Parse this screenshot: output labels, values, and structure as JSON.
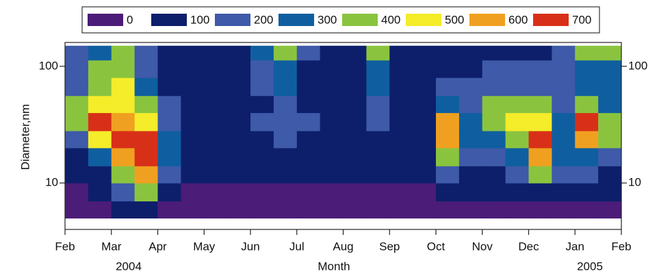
{
  "chart_data": {
    "type": "heatmap",
    "xlabel": "Month",
    "ylabel": "Diameter,nm",
    "years": [
      "2004",
      "2005"
    ],
    "xticks": [
      "Feb",
      "Mar",
      "Apr",
      "May",
      "Jun",
      "Jul",
      "Aug",
      "Sep",
      "Oct",
      "Nov",
      "Dec",
      "Jan",
      "Feb"
    ],
    "ylim": [
      4,
      160
    ],
    "yticks": [
      10,
      100
    ],
    "log_y": true,
    "y_edges": [
      5,
      7,
      10,
      14,
      20,
      28,
      40,
      56,
      80,
      113,
      150
    ],
    "colorscale": [
      {
        "value": 0,
        "color": "#4b1c78"
      },
      {
        "value": 100,
        "color": "#0d1f6b"
      },
      {
        "value": 200,
        "color": "#3e5aa8"
      },
      {
        "value": 300,
        "color": "#0f5fa0"
      },
      {
        "value": 400,
        "color": "#8ac43f"
      },
      {
        "value": 500,
        "color": "#f5ec2a"
      },
      {
        "value": 600,
        "color": "#f0a020"
      },
      {
        "value": 700,
        "color": "#d83018"
      }
    ],
    "z": [
      [
        50,
        80,
        120,
        150,
        250,
        450,
        400,
        250,
        200,
        230
      ],
      [
        80,
        120,
        150,
        300,
        550,
        700,
        500,
        400,
        400,
        300
      ],
      [
        100,
        200,
        450,
        600,
        700,
        650,
        550,
        500,
        450,
        400
      ],
      [
        150,
        400,
        650,
        700,
        700,
        550,
        400,
        350,
        250,
        200
      ],
      [
        80,
        150,
        200,
        350,
        300,
        250,
        200,
        150,
        150,
        120
      ],
      [
        30,
        80,
        110,
        120,
        130,
        130,
        120,
        110,
        100,
        100
      ],
      [
        20,
        60,
        100,
        110,
        120,
        120,
        110,
        110,
        100,
        100
      ],
      [
        20,
        60,
        100,
        110,
        120,
        120,
        110,
        110,
        100,
        100
      ],
      [
        20,
        60,
        110,
        120,
        150,
        200,
        150,
        200,
        250,
        300
      ],
      [
        20,
        70,
        120,
        150,
        200,
        250,
        250,
        300,
        350,
        400
      ],
      [
        20,
        60,
        110,
        130,
        150,
        200,
        150,
        150,
        150,
        200
      ],
      [
        20,
        50,
        100,
        110,
        120,
        130,
        120,
        110,
        110,
        120
      ],
      [
        20,
        50,
        100,
        110,
        120,
        130,
        130,
        120,
        110,
        110
      ],
      [
        20,
        60,
        110,
        120,
        150,
        200,
        250,
        300,
        350,
        450
      ],
      [
        20,
        60,
        110,
        120,
        130,
        140,
        130,
        120,
        110,
        110
      ],
      [
        30,
        80,
        120,
        150,
        180,
        180,
        160,
        130,
        120,
        110
      ],
      [
        50,
        100,
        200,
        400,
        650,
        600,
        350,
        200,
        180,
        150
      ],
      [
        40,
        100,
        150,
        250,
        350,
        300,
        250,
        220,
        180,
        150
      ],
      [
        40,
        100,
        150,
        250,
        350,
        450,
        400,
        250,
        200,
        150
      ],
      [
        40,
        110,
        200,
        350,
        450,
        500,
        400,
        250,
        200,
        180
      ],
      [
        50,
        150,
        400,
        650,
        700,
        550,
        400,
        250,
        200,
        180
      ],
      [
        40,
        120,
        200,
        300,
        350,
        300,
        250,
        200,
        200,
        200
      ],
      [
        40,
        120,
        200,
        350,
        600,
        700,
        450,
        300,
        300,
        400
      ],
      [
        40,
        100,
        150,
        250,
        400,
        450,
        350,
        300,
        350,
        450
      ]
    ]
  }
}
